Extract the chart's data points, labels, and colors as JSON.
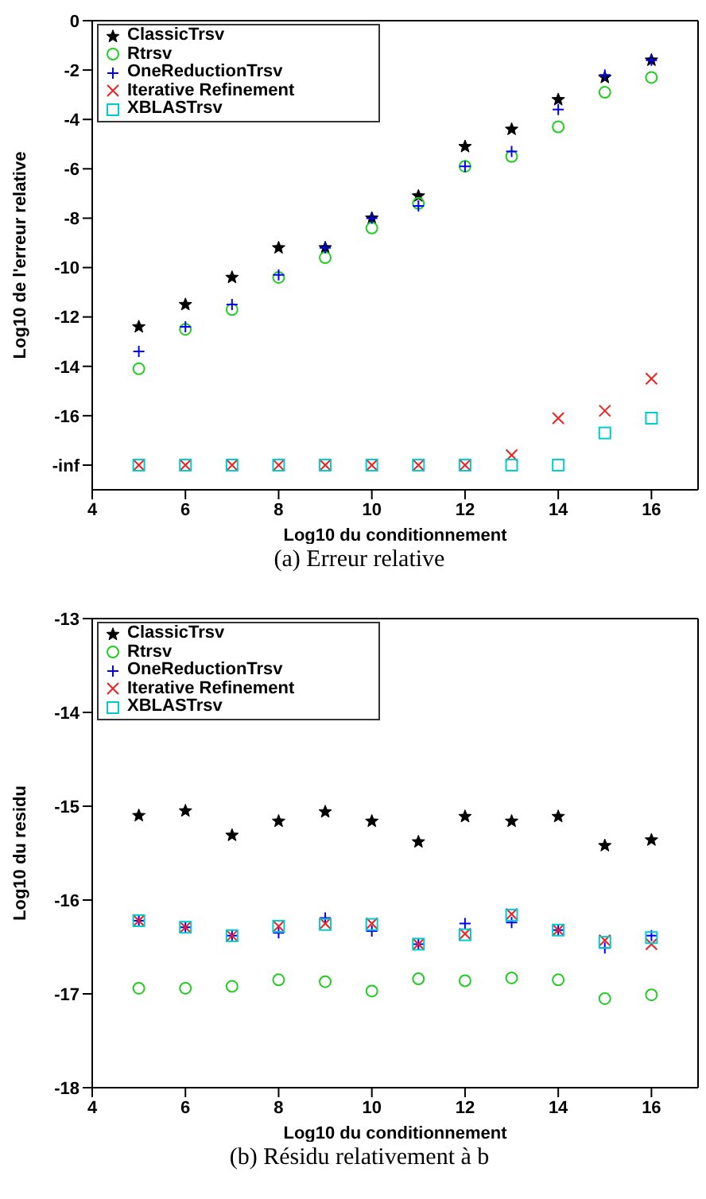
{
  "chart_data": [
    {
      "type": "scatter",
      "title": "(a) Erreur relative",
      "xlabel": "Log10 du conditionnement",
      "ylabel": "Log10 de l'erreur relative",
      "x": [
        5,
        6,
        7,
        8,
        9,
        10,
        11,
        12,
        13,
        14,
        15,
        16
      ],
      "xlim": [
        4,
        17
      ],
      "xticks": [
        4,
        6,
        8,
        10,
        12,
        14,
        16
      ],
      "ylim": [
        -19,
        0
      ],
      "yticks": [
        0,
        -2,
        -4,
        -6,
        -8,
        -10,
        -12,
        -14,
        -16,
        {
          "value": -18,
          "label": "-inf"
        }
      ],
      "grid": false,
      "legend": "top left",
      "series": [
        {
          "name": "ClassicTrsv",
          "color": "#000000",
          "marker": "star",
          "values": [
            -12.4,
            -11.5,
            -10.4,
            -9.2,
            -9.2,
            -8.0,
            -7.1,
            -5.1,
            -4.4,
            -3.2,
            -2.3,
            -1.6
          ]
        },
        {
          "name": "Rtrsv",
          "color": "#22cc22",
          "marker": "circle",
          "values": [
            -14.1,
            -12.5,
            -11.7,
            -10.4,
            -9.6,
            -8.4,
            -7.4,
            -5.9,
            -5.5,
            -4.3,
            -2.9,
            -2.3
          ]
        },
        {
          "name": "OneReductionTrsv",
          "color": "#0000ff",
          "marker": "plus",
          "values": [
            -13.4,
            -12.4,
            -11.5,
            -10.3,
            -9.2,
            -8.0,
            -7.5,
            -5.9,
            -5.3,
            -3.6,
            -2.2,
            -1.6
          ]
        },
        {
          "name": "Iterative Refinement",
          "color": "#ee2222",
          "marker": "cross",
          "values": [
            -18,
            -18,
            -18,
            -18,
            -18,
            -18,
            -18,
            -18,
            -17.6,
            -16.1,
            -15.8,
            -14.5
          ]
        },
        {
          "name": "XBLASTrsv",
          "color": "#00cccc",
          "marker": "square",
          "values": [
            -18,
            -18,
            -18,
            -18,
            -18,
            -18,
            -18,
            -18,
            -18,
            -18,
            -16.7,
            -16.1
          ]
        }
      ]
    },
    {
      "type": "scatter",
      "title": "(b) Résidu relativement à b",
      "xlabel": "Log10 du conditionnement",
      "ylabel": "Log10 du residu",
      "x": [
        5,
        6,
        7,
        8,
        9,
        10,
        11,
        12,
        13,
        14,
        15,
        16
      ],
      "xlim": [
        4,
        17
      ],
      "xticks": [
        4,
        6,
        8,
        10,
        12,
        14,
        16
      ],
      "ylim": [
        -18,
        -13
      ],
      "yticks": [
        -13,
        -14,
        -15,
        -16,
        -17,
        -18
      ],
      "grid": false,
      "legend": "top left",
      "series": [
        {
          "name": "ClassicTrsv",
          "color": "#000000",
          "marker": "star",
          "values": [
            -15.1,
            -15.05,
            -15.31,
            -15.16,
            -15.06,
            -15.16,
            -15.38,
            -15.11,
            -15.16,
            -15.11,
            -15.42,
            -15.36
          ]
        },
        {
          "name": "Rtrsv",
          "color": "#22cc22",
          "marker": "circle",
          "values": [
            -16.94,
            -16.94,
            -16.92,
            -16.85,
            -16.87,
            -16.97,
            -16.84,
            -16.86,
            -16.83,
            -16.85,
            -17.05,
            -17.01
          ]
        },
        {
          "name": "OneReductionTrsv",
          "color": "#0000ff",
          "marker": "plus",
          "values": [
            -16.22,
            -16.29,
            -16.38,
            -16.35,
            -16.19,
            -16.33,
            -16.47,
            -16.25,
            -16.24,
            -16.32,
            -16.51,
            -16.38
          ]
        },
        {
          "name": "Iterative Refinement",
          "color": "#ee2222",
          "marker": "cross",
          "values": [
            -16.22,
            -16.29,
            -16.38,
            -16.28,
            -16.25,
            -16.25,
            -16.47,
            -16.36,
            -16.15,
            -16.32,
            -16.43,
            -16.47
          ]
        },
        {
          "name": "XBLASTrsv",
          "color": "#00cccc",
          "marker": "square",
          "values": [
            -16.22,
            -16.29,
            -16.38,
            -16.28,
            -16.26,
            -16.26,
            -16.47,
            -16.37,
            -16.16,
            -16.32,
            -16.45,
            -16.4
          ]
        }
      ]
    }
  ]
}
